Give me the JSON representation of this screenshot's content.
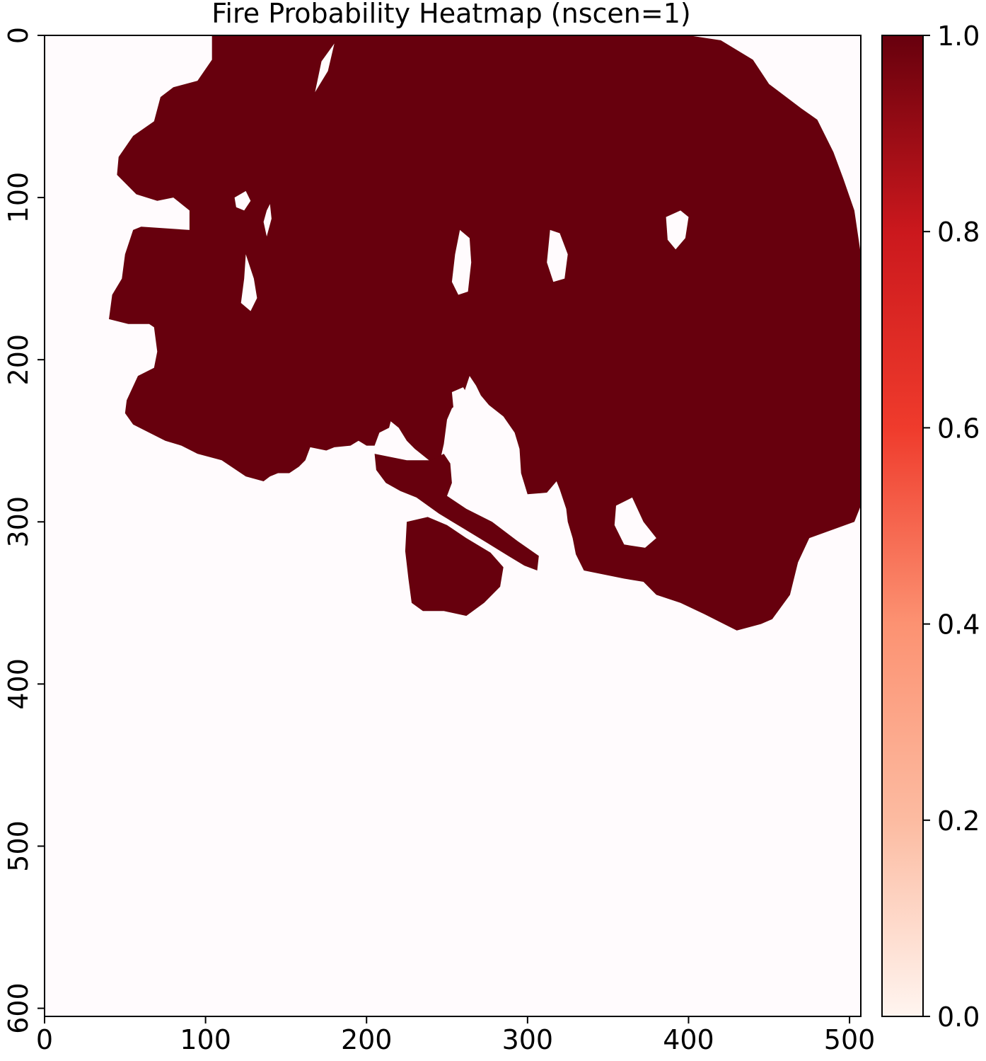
{
  "chart_data": {
    "type": "heatmap",
    "title": "Fire Probability Heatmap (nscen=1)",
    "xlabel": "",
    "ylabel": "",
    "xlim": [
      0,
      507
    ],
    "ylim": [
      605,
      0
    ],
    "x_ticks": [
      0,
      100,
      200,
      300,
      400,
      500
    ],
    "y_ticks": [
      0,
      100,
      200,
      300,
      400,
      500,
      600
    ],
    "x_tick_labels": [
      "0",
      "100",
      "200",
      "300",
      "400",
      "500"
    ],
    "y_tick_labels": [
      "0",
      "100",
      "200",
      "300",
      "400",
      "500",
      "600"
    ],
    "grid": false,
    "colormap": "Reds",
    "colorbar": {
      "vmin": 0.0,
      "vmax": 1.0,
      "ticks": [
        0.0,
        0.2,
        0.4,
        0.6,
        0.8,
        1.0
      ],
      "tick_labels": [
        "0.0",
        "0.2",
        "0.4",
        "0.6",
        "0.8",
        "1.0"
      ],
      "colors": [
        "#fff5f0",
        "#fcbba1",
        "#fc9272",
        "#ef3b2c",
        "#cb181d",
        "#67000d"
      ]
    },
    "background_value": 0.0,
    "background_color": "#fffbfd",
    "burned_value": 1.0,
    "burned_color": "#67000d",
    "burned_region": {
      "outline": [
        [
          104,
          0
        ],
        [
          170,
          0
        ],
        [
          200,
          0
        ],
        [
          240,
          0
        ],
        [
          280,
          0
        ],
        [
          320,
          0
        ],
        [
          360,
          0
        ],
        [
          400,
          0
        ],
        [
          420,
          3
        ],
        [
          440,
          15
        ],
        [
          450,
          30
        ],
        [
          470,
          45
        ],
        [
          480,
          52
        ],
        [
          490,
          72
        ],
        [
          496,
          88
        ],
        [
          503,
          108
        ],
        [
          507,
          135
        ],
        [
          507,
          200
        ],
        [
          507,
          250
        ],
        [
          507,
          290
        ],
        [
          503,
          300
        ],
        [
          475,
          310
        ],
        [
          468,
          325
        ],
        [
          463,
          345
        ],
        [
          452,
          360
        ],
        [
          445,
          363
        ],
        [
          430,
          367
        ],
        [
          410,
          357
        ],
        [
          395,
          350
        ],
        [
          380,
          345
        ],
        [
          372,
          337
        ],
        [
          360,
          335
        ],
        [
          335,
          330
        ],
        [
          330,
          320
        ],
        [
          328,
          310
        ],
        [
          325,
          300
        ],
        [
          324,
          292
        ],
        [
          320,
          280
        ],
        [
          318,
          275
        ],
        [
          312,
          282
        ],
        [
          300,
          283
        ],
        [
          296,
          270
        ],
        [
          295,
          255
        ],
        [
          292,
          245
        ],
        [
          285,
          235
        ],
        [
          276,
          228
        ],
        [
          271,
          222
        ],
        [
          268,
          216
        ],
        [
          264,
          210
        ],
        [
          259,
          225
        ],
        [
          253,
          230
        ],
        [
          250,
          237
        ],
        [
          248,
          252
        ],
        [
          245,
          265
        ],
        [
          240,
          263
        ],
        [
          230,
          255
        ],
        [
          225,
          250
        ],
        [
          220,
          242
        ],
        [
          215,
          238
        ],
        [
          214,
          242
        ],
        [
          208,
          245
        ],
        [
          205,
          253
        ],
        [
          200,
          253
        ],
        [
          195,
          250
        ],
        [
          190,
          253
        ],
        [
          180,
          254
        ],
        [
          175,
          256
        ],
        [
          165,
          254
        ],
        [
          162,
          262
        ],
        [
          158,
          266
        ],
        [
          152,
          270
        ],
        [
          145,
          270
        ],
        [
          140,
          272
        ],
        [
          136,
          275
        ],
        [
          125,
          272
        ],
        [
          110,
          262
        ],
        [
          95,
          258
        ],
        [
          85,
          253
        ],
        [
          75,
          250
        ],
        [
          65,
          245
        ],
        [
          55,
          240
        ],
        [
          50,
          233
        ],
        [
          51,
          225
        ],
        [
          58,
          210
        ],
        [
          68,
          205
        ],
        [
          70,
          195
        ],
        [
          68,
          180
        ],
        [
          65,
          178
        ],
        [
          52,
          178
        ],
        [
          40,
          175
        ],
        [
          42,
          160
        ],
        [
          48,
          150
        ],
        [
          50,
          135
        ],
        [
          55,
          120
        ],
        [
          60,
          118
        ],
        [
          90,
          120
        ],
        [
          90,
          108
        ],
        [
          80,
          100
        ],
        [
          70,
          102
        ],
        [
          57,
          98
        ],
        [
          45,
          86
        ],
        [
          46,
          75
        ],
        [
          55,
          62
        ],
        [
          68,
          53
        ],
        [
          72,
          38
        ],
        [
          80,
          32
        ],
        [
          95,
          28
        ],
        [
          104,
          15
        ],
        [
          104,
          0
        ]
      ],
      "islands": [
        [
          [
            205,
            258
          ],
          [
            225,
            262
          ],
          [
            240,
            262
          ],
          [
            248,
            258
          ],
          [
            252,
            264
          ],
          [
            253,
            276
          ],
          [
            250,
            284
          ],
          [
            262,
            292
          ],
          [
            278,
            300
          ],
          [
            294,
            312
          ],
          [
            307,
            321
          ],
          [
            306,
            330
          ],
          [
            298,
            327
          ],
          [
            288,
            321
          ],
          [
            275,
            313
          ],
          [
            260,
            304
          ],
          [
            245,
            295
          ],
          [
            231,
            285
          ],
          [
            221,
            281
          ],
          [
            212,
            276
          ],
          [
            206,
            268
          ]
        ],
        [
          [
            225,
            300
          ],
          [
            238,
            297
          ],
          [
            250,
            302
          ],
          [
            262,
            310
          ],
          [
            277,
            319
          ],
          [
            285,
            328
          ],
          [
            283,
            340
          ],
          [
            273,
            350
          ],
          [
            262,
            358
          ],
          [
            248,
            355
          ],
          [
            235,
            355
          ],
          [
            228,
            350
          ],
          [
            226,
            335
          ],
          [
            224,
            318
          ]
        ]
      ],
      "holes": [
        [
          [
            168,
            35
          ],
          [
            172,
            16
          ],
          [
            180,
            5
          ],
          [
            176,
            22
          ]
        ],
        [
          [
            118,
            100
          ],
          [
            125,
            96
          ],
          [
            128,
            102
          ],
          [
            124,
            108
          ],
          [
            119,
            106
          ]
        ],
        [
          [
            138,
            108
          ],
          [
            140,
            104
          ],
          [
            141,
            113
          ],
          [
            138,
            124
          ],
          [
            136,
            115
          ]
        ],
        [
          [
            125,
            135
          ],
          [
            130,
            150
          ],
          [
            132,
            162
          ],
          [
            128,
            170
          ],
          [
            122,
            165
          ],
          [
            124,
            150
          ]
        ],
        [
          [
            258,
            120
          ],
          [
            264,
            125
          ],
          [
            265,
            140
          ],
          [
            263,
            158
          ],
          [
            257,
            160
          ],
          [
            253,
            152
          ],
          [
            255,
            135
          ]
        ],
        [
          [
            314,
            120
          ],
          [
            320,
            122
          ],
          [
            325,
            135
          ],
          [
            323,
            150
          ],
          [
            316,
            152
          ],
          [
            312,
            140
          ]
        ],
        [
          [
            386,
            112
          ],
          [
            395,
            108
          ],
          [
            400,
            112
          ],
          [
            398,
            125
          ],
          [
            392,
            132
          ],
          [
            387,
            126
          ]
        ],
        [
          [
            355,
            290
          ],
          [
            365,
            285
          ],
          [
            372,
            300
          ],
          [
            380,
            310
          ],
          [
            373,
            316
          ],
          [
            360,
            314
          ],
          [
            354,
            302
          ]
        ],
        [
          [
            253,
            220
          ],
          [
            260,
            217
          ],
          [
            265,
            225
          ],
          [
            260,
            235
          ],
          [
            254,
            230
          ]
        ]
      ]
    }
  }
}
